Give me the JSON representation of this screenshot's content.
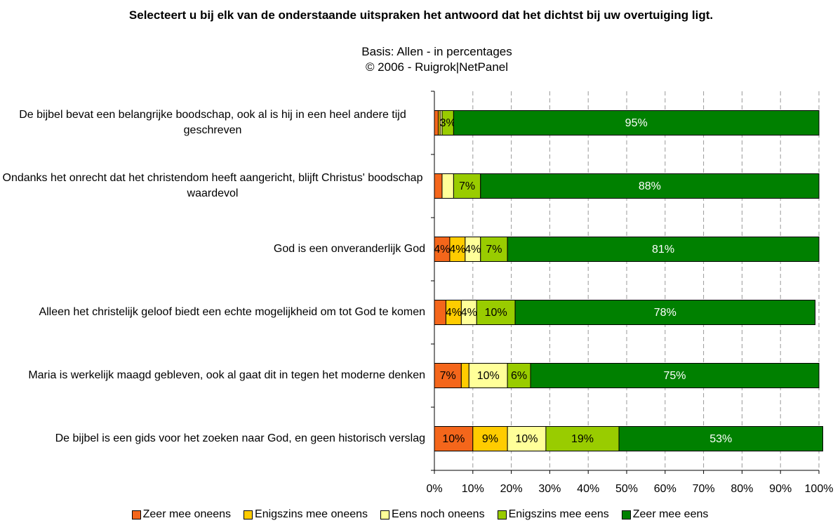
{
  "chart_data": {
    "type": "stacked_bar_horizontal",
    "title": "Selecteert u bij elk van de onderstaande uitspraken het antwoord dat het dichtst bij uw overtuiging ligt.",
    "subtitle": [
      "Basis: Allen - in percentages",
      "©  2006 - Ruigrok|NetPanel"
    ],
    "categories": [
      "De bijbel bevat een belangrijke boodschap, ook al is hij in een heel andere tijd geschreven",
      "Ondanks het onrecht dat het christendom heeft aangericht, blijft Christus' boodschap waardevol",
      "God is een onveranderlijk God",
      "Alleen het christelijk geloof biedt een echte mogelijkheid om tot God te komen",
      "Maria is werkelijk maagd gebleven, ook al gaat dit in tegen het moderne denken",
      "De bijbel is een gids voor het zoeken naar God, en geen historisch verslag"
    ],
    "series": [
      {
        "name": "Zeer mee oneens",
        "color": "#f4661b",
        "values": [
          1,
          2,
          4,
          3,
          7,
          10
        ],
        "value_labels": [
          null,
          null,
          "4%",
          null,
          "7%",
          "10%"
        ]
      },
      {
        "name": "Enigszins mee oneens",
        "color": "#ffcc00",
        "values": [
          0.5,
          0,
          4,
          4,
          2,
          9
        ],
        "value_labels": [
          null,
          null,
          "4%",
          "4%",
          null,
          "9%"
        ]
      },
      {
        "name": "Eens noch oneens",
        "color": "#ffff99",
        "values": [
          0.5,
          3,
          4,
          4,
          10,
          10
        ],
        "value_labels": [
          null,
          null,
          "4%",
          "4%",
          "10%",
          "10%"
        ]
      },
      {
        "name": "Enigszins mee eens",
        "color": "#99cc00",
        "values": [
          3,
          7,
          7,
          10,
          6,
          19
        ],
        "value_labels": [
          "3%",
          "7%",
          "7%",
          "10%",
          "6%",
          "19%"
        ]
      },
      {
        "name": "Zeer mee eens",
        "color": "#008000",
        "values": [
          95,
          88,
          81,
          78,
          75,
          53
        ],
        "value_labels": [
          "95%",
          "88%",
          "81%",
          "78%",
          "75%",
          "53%"
        ]
      }
    ],
    "xlim": [
      0,
      100
    ],
    "xticks": [
      {
        "value": 0,
        "label": "0%"
      },
      {
        "value": 10,
        "label": "10%"
      },
      {
        "value": 20,
        "label": "20%"
      },
      {
        "value": 30,
        "label": "30%"
      },
      {
        "value": 40,
        "label": "40%"
      },
      {
        "value": 50,
        "label": "50%"
      },
      {
        "value": 60,
        "label": "60%"
      },
      {
        "value": 70,
        "label": "70%"
      },
      {
        "value": 80,
        "label": "80%"
      },
      {
        "value": 90,
        "label": "90%"
      },
      {
        "value": 100,
        "label": "100%"
      }
    ],
    "grid": true,
    "legend": "bottom"
  }
}
